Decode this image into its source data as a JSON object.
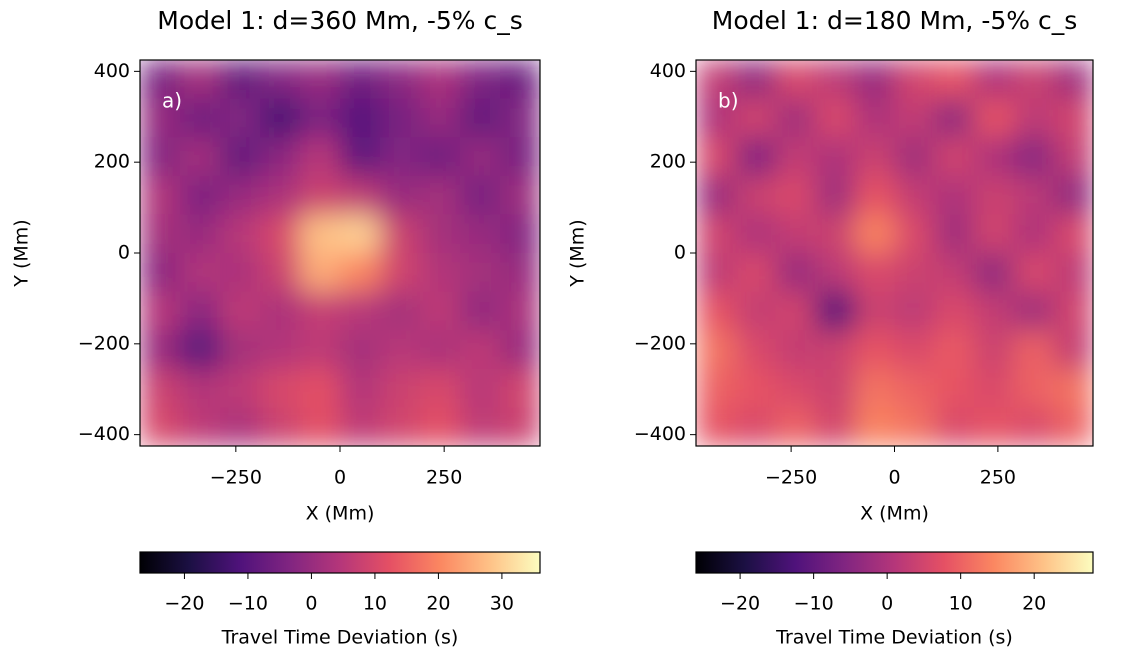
{
  "chart_data": [
    {
      "type": "heatmap",
      "title": "Model 1: d=360 Mm, -5% c_s",
      "annotation": "a)",
      "x_label": "X (Mm)",
      "y_label": "Y (Mm)",
      "colorbar_label": "Travel Time Deviation (s)",
      "colormap": "magma",
      "xlim": [
        -480,
        480
      ],
      "ylim": [
        -425,
        425
      ],
      "xticks": [
        {
          "value": -250,
          "label": "−250"
        },
        0,
        250
      ],
      "yticks": [
        {
          "value": -400,
          "label": "−400"
        },
        {
          "value": -200,
          "label": "−200"
        },
        0,
        200,
        400
      ],
      "clim": [
        -27,
        36
      ],
      "cticks": [
        {
          "value": -20,
          "label": "−20"
        },
        {
          "value": -10,
          "label": "−10"
        },
        0,
        10,
        20,
        30
      ],
      "z": [
        [
          -5,
          2,
          -8,
          -3,
          0,
          -6,
          -2,
          3,
          -4,
          -7
        ],
        [
          0,
          -6,
          -3,
          -12,
          -4,
          -10,
          -5,
          0,
          -8,
          -3
        ],
        [
          -3,
          2,
          -8,
          -2,
          5,
          -9,
          -3,
          -6,
          0,
          -5
        ],
        [
          4,
          -4,
          0,
          3,
          8,
          6,
          0,
          2,
          -5,
          1
        ],
        [
          2,
          0,
          5,
          10,
          28,
          30,
          8,
          2,
          0,
          -3
        ],
        [
          -2,
          4,
          3,
          8,
          25,
          20,
          9,
          4,
          2,
          0
        ],
        [
          5,
          -2,
          6,
          3,
          7,
          5,
          2,
          6,
          -1,
          3
        ],
        [
          0,
          -10,
          2,
          4,
          6,
          2,
          5,
          3,
          6,
          0
        ],
        [
          8,
          4,
          6,
          10,
          12,
          4,
          8,
          10,
          5,
          9
        ],
        [
          10,
          6,
          3,
          8,
          12,
          6,
          9,
          12,
          6,
          8
        ]
      ]
    },
    {
      "type": "heatmap",
      "title": "Model 1: d=180 Mm, -5% c_s",
      "annotation": "b)",
      "x_label": "X (Mm)",
      "y_label": "Y (Mm)",
      "colorbar_label": "Travel Time Deviation (s)",
      "colormap": "magma",
      "xlim": [
        -480,
        480
      ],
      "ylim": [
        -425,
        425
      ],
      "xticks": [
        {
          "value": -250,
          "label": "−250"
        },
        0,
        250
      ],
      "yticks": [
        {
          "value": -400,
          "label": "−400"
        },
        {
          "value": -200,
          "label": "−200"
        },
        0,
        200,
        400
      ],
      "clim": [
        -26,
        28
      ],
      "cticks": [
        {
          "value": -20,
          "label": "−20"
        },
        {
          "value": -10,
          "label": "−10"
        },
        0,
        10,
        20
      ],
      "z": [
        [
          3,
          -4,
          6,
          2,
          -3,
          5,
          8,
          0,
          4,
          -2
        ],
        [
          0,
          5,
          -2,
          6,
          0,
          3,
          -4,
          8,
          2,
          5
        ],
        [
          6,
          -6,
          3,
          0,
          4,
          -2,
          5,
          0,
          -5,
          3
        ],
        [
          -3,
          4,
          6,
          -2,
          8,
          3,
          0,
          4,
          2,
          -4
        ],
        [
          5,
          0,
          3,
          4,
          14,
          6,
          -2,
          5,
          0,
          6
        ],
        [
          2,
          6,
          -3,
          2,
          6,
          4,
          3,
          -4,
          6,
          2
        ],
        [
          8,
          3,
          5,
          -12,
          4,
          2,
          6,
          3,
          -2,
          5
        ],
        [
          12,
          6,
          3,
          4,
          8,
          6,
          9,
          4,
          10,
          3
        ],
        [
          10,
          8,
          6,
          4,
          12,
          10,
          8,
          6,
          10,
          12
        ],
        [
          8,
          6,
          10,
          5,
          14,
          12,
          6,
          8,
          6,
          10
        ]
      ]
    }
  ]
}
